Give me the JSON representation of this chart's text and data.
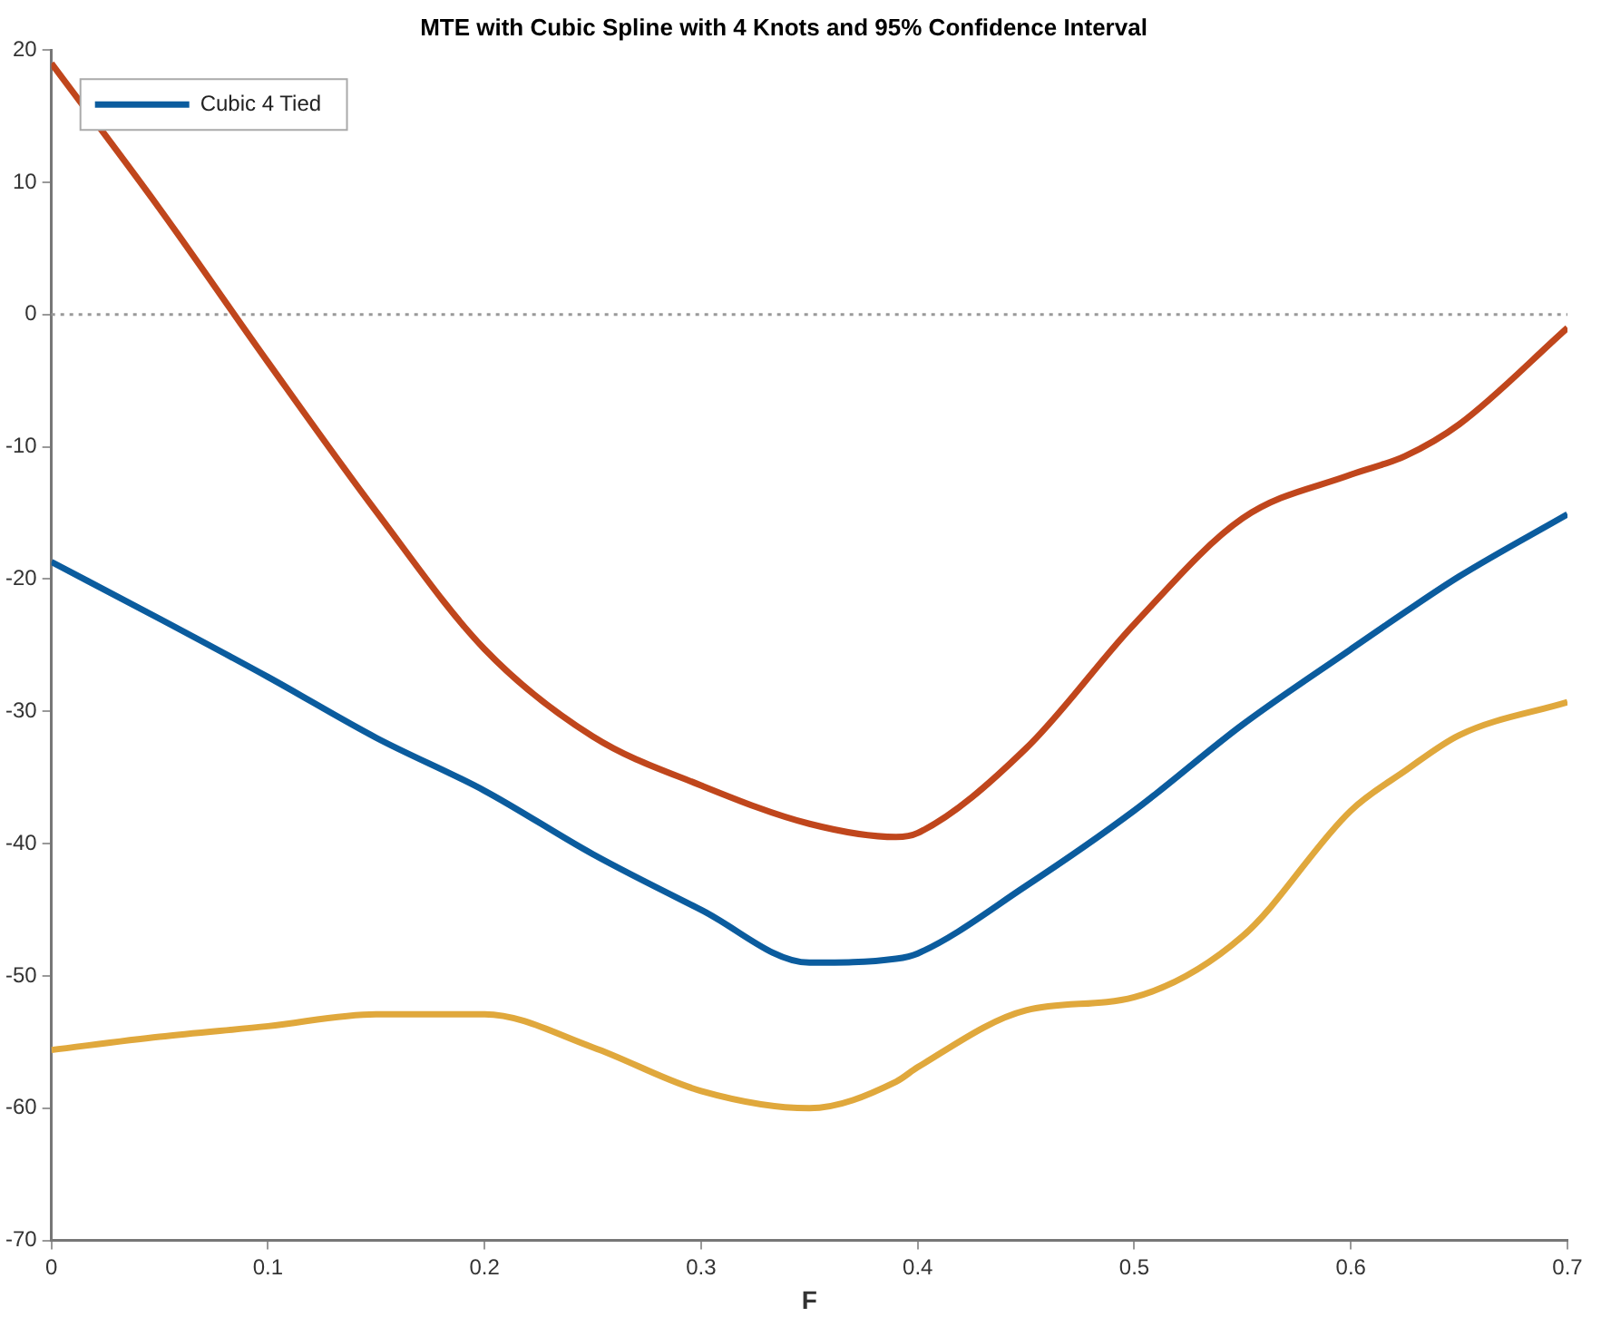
{
  "chart_data": {
    "type": "line",
    "title": "MTE with Cubic Spline with 4 Knots and 95% Confidence Interval",
    "xlabel": "F",
    "xlim": [
      0,
      0.7
    ],
    "xticks": [
      0,
      0.1,
      0.2,
      0.3,
      0.4,
      0.5,
      0.6,
      0.7
    ],
    "ylim": [
      -70,
      20
    ],
    "yticks": [
      -70,
      -60,
      -50,
      -40,
      -30,
      -20,
      -10,
      0,
      10,
      20
    ],
    "grid": false,
    "legend": "top left",
    "marker": "none",
    "line_style": "solid",
    "x": [
      0,
      0.05,
      0.1,
      0.15,
      0.2,
      0.25,
      0.3,
      0.35,
      0.39,
      0.4,
      0.45,
      0.5,
      0.55,
      0.6,
      0.625,
      0.65,
      0.7
    ],
    "series": [
      {
        "name": "Cubic 4 Tied",
        "color": "#0b5c9e",
        "values": [
          -18.7,
          -23,
          -27.4,
          -32,
          -36,
          -40.8,
          -45,
          -49,
          -48.7,
          -48.3,
          -43.2,
          -37.5,
          -31,
          -25.3,
          -22.5,
          -19.8,
          -15.1
        ]
      },
      {
        "color": "#c0461c",
        "values": [
          19,
          8,
          -3.6,
          -14.9,
          -25.3,
          -31.9,
          -35.6,
          -38.5,
          -39.5,
          -39.2,
          -32.8,
          -23.4,
          -15.4,
          -12.1,
          -10.7,
          -8.3,
          -1
        ]
      },
      {
        "color": "#e0a83c",
        "values": [
          -55.6,
          -54.6,
          -53.8,
          -52.9,
          -52.9,
          -55.4,
          -58.7,
          -60,
          -58,
          -56.9,
          -52.6,
          -51.6,
          -47,
          -37.5,
          -34.5,
          -31.8,
          -29.3
        ]
      }
    ],
    "ref_lines": [
      {
        "axis": "y",
        "value": 0,
        "color": "#999999",
        "line_style": "dotted"
      }
    ]
  }
}
